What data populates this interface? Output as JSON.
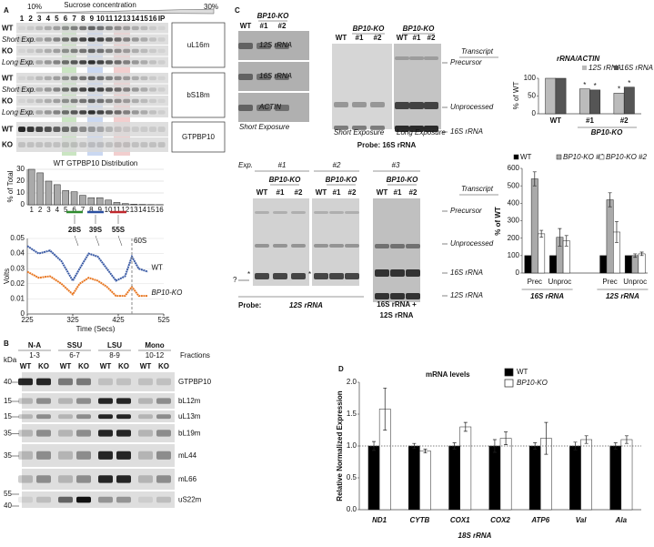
{
  "panel_labels": [
    "A",
    "B",
    "C",
    "D"
  ],
  "panel_a": {
    "gradient_label": "Sucrose concentration",
    "gradient_low": "10%",
    "gradient_high": "30%",
    "fractions": [
      "1",
      "2",
      "3",
      "4",
      "5",
      "6",
      "7",
      "8",
      "9",
      "10",
      "11",
      "12",
      "13",
      "14",
      "15",
      "16",
      "IP"
    ],
    "blots": [
      {
        "name": "uL16m",
        "rows": [
          "WT",
          "Short Exp.",
          "KO",
          "Long Exp."
        ]
      },
      {
        "name": "bS18m",
        "rows": [
          "WT",
          "Short Exp.",
          "KO",
          "Long Exp."
        ]
      },
      {
        "name": "GTPBP10",
        "rows": [
          "WT",
          "KO"
        ]
      }
    ],
    "peaks": [
      {
        "label": "28S",
        "color": "#2e8b2e"
      },
      {
        "label": "39S",
        "color": "#2b4fa0"
      },
      {
        "label": "55S",
        "color": "#c0282d"
      }
    ]
  },
  "panel_b": {
    "kda_label": "kDa",
    "fractions_label": "Fractions",
    "lane_labels": [
      "WT",
      "KO"
    ],
    "groups": [
      {
        "name": "N-A",
        "fractions": "1-3"
      },
      {
        "name": "SSU",
        "fractions": "6-7"
      },
      {
        "name": "LSU",
        "fractions": "8-9"
      },
      {
        "name": "Mono",
        "fractions": "10-12"
      }
    ],
    "blots": [
      {
        "name": "GTPBP10",
        "kda": [
          "40"
        ]
      },
      {
        "name": "bL12m",
        "kda": [
          "15"
        ]
      },
      {
        "name": "uL13m",
        "kda": [
          "15"
        ]
      },
      {
        "name": "bL19m",
        "kda": [
          "35"
        ]
      },
      {
        "name": "mL44",
        "kda": [
          "35"
        ]
      },
      {
        "name": "mL66",
        "kda": []
      },
      {
        "name": "uS22m",
        "kda": [
          "55",
          "40"
        ]
      }
    ]
  },
  "panel_c": {
    "group": "BP10-KO",
    "lanes": [
      "WT",
      "#1",
      "#2"
    ],
    "bands": [
      "12S rRNA",
      "16S rRNA",
      "ACTIN"
    ],
    "short_exposure": "Short Exposure",
    "long_exposure": "Long Exposure",
    "transcript": "Transcript",
    "top_markers": [
      "Precursor",
      "Unprocessed",
      "16S rRNA"
    ],
    "top_probe": "Probe: 16S rRNA",
    "exp_label": "Exp.",
    "experiments": [
      "#1",
      "#2",
      "#3"
    ],
    "bottom_markers": [
      "Precursor",
      "Unprocessed",
      "16S rRNA",
      "12S rRNA"
    ],
    "unknown": "?",
    "star": "*",
    "probe_label": "Probe:",
    "probe_12s": "12S rRNA",
    "probe_combined": [
      "16S rRNA +",
      "12S rRNA"
    ]
  },
  "chart_data": [
    {
      "type": "bar",
      "title": "WT GTPBP10 Distribution",
      "y_label": "% of Total",
      "color": "#aaaaaa",
      "categories": [
        "1",
        "2",
        "3",
        "4",
        "5",
        "6",
        "7",
        "8",
        "9",
        "10",
        "11",
        "12",
        "13",
        "14",
        "15",
        "16"
      ],
      "values": [
        30,
        27,
        20,
        17,
        12,
        11,
        8,
        6,
        6,
        4,
        2,
        1,
        0.5,
        0.3,
        0.2,
        0.1
      ],
      "ylim": [
        0,
        30
      ],
      "yticks": [
        0,
        10,
        20,
        30
      ],
      "grid": true
    },
    {
      "type": "line",
      "x_label": "Time (Secs)",
      "y_label": "Volts",
      "xlim": [
        225,
        525
      ],
      "xticks": [
        225,
        325,
        425,
        525
      ],
      "ylim": [
        0,
        0.05
      ],
      "yticks": [
        0,
        0.01,
        0.02,
        0.03,
        0.04,
        0.05
      ],
      "x": [
        225,
        250,
        275,
        300,
        325,
        340,
        360,
        380,
        400,
        420,
        440,
        455,
        470,
        490
      ],
      "series": [
        {
          "name": "WT",
          "color": "#3b5ba5",
          "values": [
            0.045,
            0.04,
            0.042,
            0.035,
            0.022,
            0.03,
            0.04,
            0.038,
            0.03,
            0.022,
            0.025,
            0.038,
            0.03,
            0.028
          ]
        },
        {
          "name": "BP10-KO",
          "color": "#e87722",
          "values": [
            0.028,
            0.024,
            0.025,
            0.02,
            0.013,
            0.02,
            0.024,
            0.022,
            0.018,
            0.012,
            0.012,
            0.018,
            0.012,
            0.012
          ]
        }
      ],
      "annotation": {
        "text": "60S",
        "x": 455
      }
    },
    {
      "type": "bar",
      "title": "rRNA/ACTIN",
      "y_label": "% of WT",
      "categories": [
        "WT",
        "#1",
        "#2"
      ],
      "group_label": "BP10-KO",
      "series": [
        {
          "name": "12S rRNA",
          "color": "#bbbbbb",
          "values": [
            100,
            70,
            58
          ],
          "significance": [
            null,
            "*",
            "*"
          ]
        },
        {
          "name": "16S rRNA",
          "color": "#555555",
          "values": [
            100,
            67,
            75
          ],
          "significance": [
            null,
            "*",
            "*"
          ]
        }
      ],
      "ylim": [
        0,
        100
      ],
      "yticks": [
        0,
        50,
        100
      ]
    },
    {
      "type": "bar",
      "y_label": "% of WT",
      "categories": [
        "Prec",
        "Unproc",
        "Prec",
        "Unproc"
      ],
      "groups": [
        "16S rRNA",
        "12S rRNA"
      ],
      "series": [
        {
          "name": "WT",
          "color": "#000000",
          "values": [
            100,
            100,
            100,
            100
          ]
        },
        {
          "name": "BP10-KO #1",
          "color": "#aaaaaa",
          "values": [
            540,
            205,
            420,
            100
          ],
          "errors": [
            40,
            50,
            40,
            10
          ]
        },
        {
          "name": "BP10-KO #2",
          "color": "#ffffff",
          "values": [
            225,
            185,
            235,
            110
          ],
          "errors": [
            20,
            30,
            60,
            10
          ]
        }
      ],
      "ylim": [
        0,
        600
      ],
      "yticks": [
        0,
        100,
        200,
        300,
        400,
        500,
        600
      ]
    },
    {
      "type": "bar",
      "title": "mRNA levels",
      "y_label": "Relative Normalized Expression",
      "footer": "18S rRNA",
      "categories": [
        "ND1",
        "CYTB",
        "COX1",
        "COX2",
        "ATP6",
        "Val",
        "Ala"
      ],
      "series": [
        {
          "name": "WT",
          "color": "#000000",
          "values": [
            1,
            1,
            1,
            1,
            1,
            1,
            1
          ],
          "errors": [
            0.07,
            0.04,
            0.05,
            0.1,
            0.05,
            0.06,
            0.05
          ]
        },
        {
          "name": "BP10-KO",
          "color": "#ffffff",
          "values": [
            1.58,
            0.92,
            1.3,
            1.12,
            1.12,
            1.1,
            1.1
          ],
          "errors": [
            0.33,
            0.03,
            0.07,
            0.1,
            0.25,
            0.06,
            0.06
          ]
        }
      ],
      "ylim": [
        0,
        2
      ],
      "yticks": [
        {
          "value": 0,
          "label": "0.0"
        },
        {
          "value": 0.5,
          "label": "0.5"
        },
        {
          "value": 1,
          "label": "1.0"
        },
        {
          "value": 1.5,
          "label": "1.5"
        },
        {
          "value": 2,
          "label": "2.0"
        }
      ],
      "reference": 1
    }
  ]
}
